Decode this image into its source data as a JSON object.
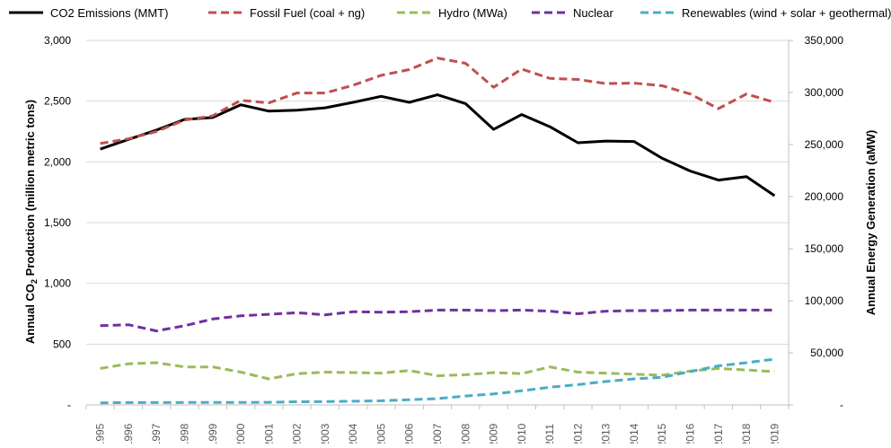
{
  "chart_data": {
    "type": "line",
    "title": "",
    "xlabel": "",
    "ylabel": "Annual CO",
    "ylabel_sub": "2",
    "ylabel_tail": " Production (million metric tons)",
    "y2label": "Annual Energy Generation (aMW)",
    "categories": [
      "1995",
      "1996",
      "1997",
      "1998",
      "1999",
      "2000",
      "2001",
      "2002",
      "2003",
      "2004",
      "2005",
      "2006",
      "2007",
      "2008",
      "2009",
      "2010",
      "2011",
      "2012",
      "2013",
      "2014",
      "2015",
      "2016",
      "2017",
      "2018",
      "2019"
    ],
    "ylim": [
      0,
      3000
    ],
    "y2lim": [
      0,
      350000
    ],
    "yticks": [
      {
        "value": 0,
        "label": "-"
      },
      {
        "value": 500,
        "label": "500"
      },
      {
        "value": 1000,
        "label": "1,000"
      },
      {
        "value": 1500,
        "label": "1,500"
      },
      {
        "value": 2000,
        "label": "2,000"
      },
      {
        "value": 2500,
        "label": "2,500"
      },
      {
        "value": 3000,
        "label": "3,000"
      }
    ],
    "y2ticks": [
      {
        "value": 0,
        "label": "-"
      },
      {
        "value": 50000,
        "label": "50,000"
      },
      {
        "value": 100000,
        "label": "100,000"
      },
      {
        "value": 150000,
        "label": "150,000"
      },
      {
        "value": 200000,
        "label": "200,000"
      },
      {
        "value": 250000,
        "label": "250,000"
      },
      {
        "value": 300000,
        "label": "300,000"
      },
      {
        "value": 350000,
        "label": "350,000"
      }
    ],
    "grid": true,
    "legend_position": "top",
    "series": [
      {
        "name": "CO2 Emissions (MMT)",
        "axis": "left",
        "color": "#000000",
        "dash": "solid",
        "values": [
          2105,
          2185,
          2262,
          2350,
          2365,
          2470,
          2418,
          2425,
          2445,
          2490,
          2540,
          2490,
          2552,
          2480,
          2268,
          2390,
          2290,
          2158,
          2172,
          2168,
          2030,
          1925,
          1850,
          1878,
          1722
        ]
      },
      {
        "name": "Fossil Fuel (coal + ng)",
        "axis": "right",
        "color": "#C0504D",
        "dash": "dashed",
        "values": [
          251000,
          255500,
          262500,
          273500,
          277500,
          292500,
          290000,
          299500,
          299500,
          307000,
          316500,
          322000,
          333000,
          328000,
          305000,
          322500,
          313500,
          312500,
          308500,
          309000,
          306500,
          298500,
          284500,
          298500,
          290500
        ]
      },
      {
        "name": "Hydro (MWa)",
        "axis": "right",
        "color": "#9BBB59",
        "dash": "dashed",
        "values": [
          35000,
          39500,
          40500,
          36500,
          36500,
          31500,
          25000,
          30000,
          31500,
          31000,
          30500,
          33000,
          28000,
          29000,
          31000,
          30000,
          36500,
          31500,
          30500,
          29500,
          28500,
          32500,
          35000,
          33500,
          32000
        ]
      },
      {
        "name": "Nuclear",
        "axis": "right",
        "color": "#7030A0",
        "dash": "dashed",
        "values": [
          76000,
          77000,
          71000,
          76000,
          82500,
          85500,
          87000,
          88500,
          86500,
          89500,
          89000,
          89500,
          91000,
          91000,
          90500,
          91000,
          90000,
          87500,
          90000,
          90500,
          90500,
          91000,
          91000,
          91000,
          91000
        ]
      },
      {
        "name": "Renewables (wind + solar + geothermal)",
        "axis": "right",
        "color": "#4BACC6",
        "dash": "dashed",
        "values": [
          2000,
          2200,
          2200,
          2300,
          2400,
          2300,
          2500,
          3000,
          3200,
          3500,
          4000,
          5000,
          6000,
          8500,
          10500,
          13500,
          17000,
          19500,
          22500,
          25000,
          26500,
          32000,
          37500,
          40500,
          44000
        ]
      }
    ]
  }
}
